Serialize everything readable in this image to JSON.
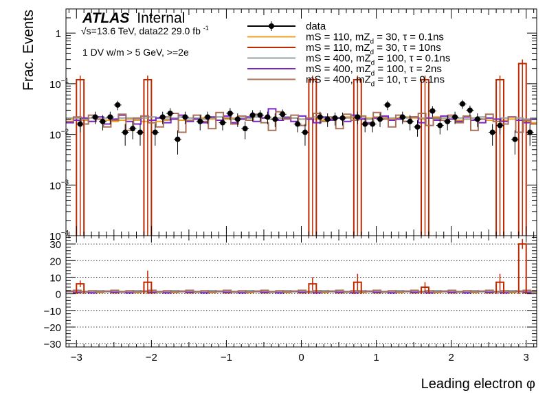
{
  "chart_data": [
    {
      "type": "histogram",
      "panel": "main",
      "xlabel": "Leading electron φ",
      "ylabel": "Frac. Events",
      "log_y": true,
      "xlim": [
        -3.14,
        3.14
      ],
      "ylim": [
        0.0001,
        3.0
      ],
      "y_ticks": [
        {
          "v": 1,
          "label": "1"
        },
        {
          "v": 0.1,
          "label": "10",
          "sup": "−1"
        },
        {
          "v": 0.01,
          "label": "10",
          "sup": "−2"
        },
        {
          "v": 0.001,
          "label": "10",
          "sup": "−3"
        },
        {
          "v": 0.0001,
          "label": "10",
          "sup": "−4"
        }
      ],
      "legend_position": "top-right",
      "bin_width": 0.1,
      "atlas_label": "ATLAS",
      "atlas_status": "Internal",
      "energy_label": "√s=13.6 TeV, data22 29.0 fb",
      "energy_sup": "-1",
      "selection_label": "1 DV w/m > 5 GeV, >=2e",
      "series": [
        {
          "name": "data",
          "style": "points",
          "color": "#000000",
          "x": [
            -2.95,
            -2.75,
            -2.65,
            -2.55,
            -2.45,
            -2.35,
            -2.25,
            -2.15,
            -1.95,
            -1.85,
            -1.75,
            -1.65,
            -1.55,
            -1.35,
            -1.25,
            -1.05,
            -0.95,
            -0.85,
            -0.75,
            -0.65,
            -0.55,
            -0.45,
            -0.35,
            -0.25,
            -0.05,
            0.05,
            0.25,
            0.35,
            0.45,
            0.55,
            0.75,
            0.85,
            0.95,
            1.05,
            1.15,
            1.35,
            1.45,
            1.55,
            1.75,
            1.85,
            1.95,
            2.05,
            2.15,
            2.25,
            2.35,
            2.55,
            2.65,
            2.85,
            3.05
          ],
          "y": [
            0.016,
            0.022,
            0.018,
            0.022,
            0.038,
            0.011,
            0.013,
            0.011,
            0.011,
            0.022,
            0.026,
            0.008,
            0.022,
            0.018,
            0.022,
            0.017,
            0.026,
            0.02,
            0.013,
            0.024,
            0.024,
            0.022,
            0.02,
            0.025,
            0.016,
            0.011,
            0.022,
            0.02,
            0.021,
            0.021,
            0.022,
            0.016,
            0.016,
            0.02,
            0.038,
            0.022,
            0.018,
            0.014,
            0.029,
            0.015,
            0.018,
            0.022,
            0.04,
            0.03,
            0.02,
            0.011,
            0.015,
            0.008,
            0.011
          ],
          "yerr": [
            0.005,
            0.006,
            0.006,
            0.006,
            0.008,
            0.005,
            0.005,
            0.005,
            0.005,
            0.006,
            0.007,
            0.004,
            0.006,
            0.006,
            0.006,
            0.005,
            0.007,
            0.006,
            0.005,
            0.006,
            0.006,
            0.006,
            0.006,
            0.006,
            0.005,
            0.005,
            0.006,
            0.006,
            0.006,
            0.006,
            0.006,
            0.005,
            0.005,
            0.006,
            0.008,
            0.006,
            0.006,
            0.005,
            0.007,
            0.005,
            0.006,
            0.006,
            0.008,
            0.007,
            0.006,
            0.005,
            0.005,
            0.004,
            0.005
          ]
        },
        {
          "name": "mS = 110, mZ_d = 30, τ = 0.1ns",
          "name_main": "mS = 110, mZ",
          "name_sub": "d",
          "name_rest": " = 30, τ = 0.1ns",
          "style": "step",
          "color": "#f0a020",
          "values": [
            0.02,
            0.019,
            0.019,
            0.018,
            0.02,
            0.019,
            0.018,
            0.019,
            0.02,
            0.019,
            0.018,
            0.017,
            0.018,
            0.019,
            0.02,
            0.019,
            0.019,
            0.02,
            0.021,
            0.02,
            0.019,
            0.02,
            0.021,
            0.02,
            0.021,
            0.022,
            0.021,
            0.02,
            0.021,
            0.022,
            0.021,
            0.02,
            0.021,
            0.02,
            0.019,
            0.02,
            0.021,
            0.022,
            0.021,
            0.02,
            0.021,
            0.022,
            0.021,
            0.02,
            0.021,
            0.022,
            0.021,
            0.02,
            0.021,
            0.022,
            0.021,
            0.02,
            0.019,
            0.02,
            0.021,
            0.02,
            0.019,
            0.018,
            0.019,
            0.02,
            0.019,
            0.018,
            0.017
          ]
        },
        {
          "name": "mS = 110, mZ_d = 30, τ = 10ns",
          "name_main": "mS = 110, mZ",
          "name_sub": "d",
          "name_rest": " = 30, τ = 10ns",
          "style": "spikes",
          "color": "#c02800",
          "spikes": [
            {
              "x": -2.95,
              "y": 0.12
            },
            {
              "x": -2.05,
              "y": 0.12
            },
            {
              "x": 0.15,
              "y": 0.12
            },
            {
              "x": 0.75,
              "y": 0.12
            },
            {
              "x": 1.65,
              "y": 0.12
            },
            {
              "x": 2.65,
              "y": 0.12
            },
            {
              "x": 2.95,
              "y": 0.25
            }
          ]
        },
        {
          "name": "mS = 400, mZ_d = 100, τ = 0.1ns",
          "name_main": "mS = 400, mZ",
          "name_sub": "d",
          "name_rest": " = 100, τ = 0.1ns",
          "style": "step",
          "color": "#94a0a4",
          "values": [
            0.021,
            0.021,
            0.02,
            0.021,
            0.022,
            0.021,
            0.02,
            0.021,
            0.021,
            0.02,
            0.021,
            0.022,
            0.021,
            0.02,
            0.021,
            0.022,
            0.021,
            0.021,
            0.02,
            0.021,
            0.022,
            0.021,
            0.02,
            0.021,
            0.021,
            0.022,
            0.021,
            0.02,
            0.021,
            0.022,
            0.021,
            0.02,
            0.021,
            0.022,
            0.021,
            0.02,
            0.021,
            0.021,
            0.022,
            0.021,
            0.02,
            0.021,
            0.022,
            0.021,
            0.02,
            0.021,
            0.022,
            0.021,
            0.021,
            0.02,
            0.021,
            0.022,
            0.021,
            0.02,
            0.021,
            0.022,
            0.021,
            0.02,
            0.021,
            0.022,
            0.021,
            0.02,
            0.021
          ]
        },
        {
          "name": "mS = 400, mZ_d = 100, τ = 2ns",
          "name_main": "mS = 400, mZ",
          "name_sub": "d",
          "name_rest": " = 100, τ = 2ns",
          "style": "step",
          "color": "#7a24c4",
          "values": [
            0.017,
            0.019,
            0.021,
            0.018,
            0.022,
            0.016,
            0.02,
            0.024,
            0.018,
            0.016,
            0.023,
            0.019,
            0.021,
            0.017,
            0.02,
            0.024,
            0.018,
            0.02,
            0.017,
            0.022,
            0.019,
            0.023,
            0.017,
            0.02,
            0.022,
            0.018,
            0.021,
            0.032,
            0.019,
            0.021,
            0.018,
            0.023,
            0.02,
            0.017,
            0.022,
            0.019,
            0.021,
            0.018,
            0.024,
            0.02,
            0.017,
            0.021,
            0.023,
            0.019,
            0.02,
            0.018,
            0.022,
            0.017,
            0.021,
            0.019,
            0.023,
            0.02,
            0.018,
            0.022,
            0.019,
            0.017,
            0.021,
            0.02,
            0.018,
            0.022,
            0.019,
            0.017,
            0.02
          ]
        },
        {
          "name": "mS = 400, mZ_d = 10, τ = 0.1ns",
          "name_main": "mS = 400, mZ",
          "name_sub": "d",
          "name_rest": " = 10, τ = 0.1ns",
          "style": "step",
          "color": "#a87058",
          "values": [
            0.018,
            0.022,
            0.016,
            0.024,
            0.02,
            0.014,
            0.019,
            0.025,
            0.012,
            0.021,
            0.023,
            0.017,
            0.014,
            0.022,
            0.026,
            0.011,
            0.019,
            0.024,
            0.018,
            0.013,
            0.027,
            0.021,
            0.016,
            0.023,
            0.019,
            0.025,
            0.017,
            0.012,
            0.028,
            0.02,
            0.024,
            0.015,
            0.021,
            0.026,
            0.018,
            0.022,
            0.013,
            0.025,
            0.019,
            0.023,
            0.016,
            0.027,
            0.02,
            0.014,
            0.024,
            0.018,
            0.022,
            0.026,
            0.015,
            0.021,
            0.019,
            0.024,
            0.017,
            0.023,
            0.012,
            0.02,
            0.025,
            0.018,
            0.016,
            0.022,
            0.011,
            0.019,
            0.016
          ]
        }
      ]
    },
    {
      "type": "histogram",
      "panel": "ratio",
      "ylim": [
        -32,
        35
      ],
      "y_ticks": [
        30,
        20,
        10,
        0,
        -10,
        -20,
        -30
      ],
      "x_ticks": [
        -3,
        -2,
        -1,
        0,
        1,
        2,
        3
      ],
      "x_tick_labels": [
        "−3",
        "−2",
        "−1",
        "0",
        "1",
        "2",
        "3"
      ],
      "y_tick_labels": [
        "30",
        "20",
        "10",
        "0",
        "−10",
        "−20",
        "−30"
      ],
      "grid": true,
      "series": [
        {
          "name": "mS = 110, mZ_d = 30, τ = 10ns",
          "color": "#c02800",
          "spikes": [
            {
              "x": -2.95,
              "y": 6
            },
            {
              "x": -2.05,
              "y": 7
            },
            {
              "x": 0.15,
              "y": 6
            },
            {
              "x": 0.75,
              "y": 7
            },
            {
              "x": 1.65,
              "y": 4
            },
            {
              "x": 2.65,
              "y": 7
            },
            {
              "x": 2.95,
              "y": 30
            }
          ],
          "spike_err": [
            {
              "x": -2.95,
              "y": 8
            },
            {
              "x": -2.05,
              "y": 14
            },
            {
              "x": 0.15,
              "y": 10
            },
            {
              "x": 0.75,
              "y": 12
            },
            {
              "x": 1.65,
              "y": 7
            },
            {
              "x": 2.65,
              "y": 12
            },
            {
              "x": 2.95,
              "y": 33
            }
          ]
        },
        {
          "name": "mS = 110, mZ_d = 30, τ = 0.1ns",
          "color": "#f0a020",
          "level": 1.0
        },
        {
          "name": "mS = 400, mZ_d = 100, τ = 0.1ns",
          "color": "#94a0a4",
          "level": 1.4
        },
        {
          "name": "mS = 400, mZ_d = 100, τ = 2ns",
          "color": "#7a24c4",
          "level": 1.1
        },
        {
          "name": "mS = 400, mZ_d = 10, τ = 0.1ns",
          "color": "#a87058",
          "level": 1.6
        }
      ]
    }
  ]
}
